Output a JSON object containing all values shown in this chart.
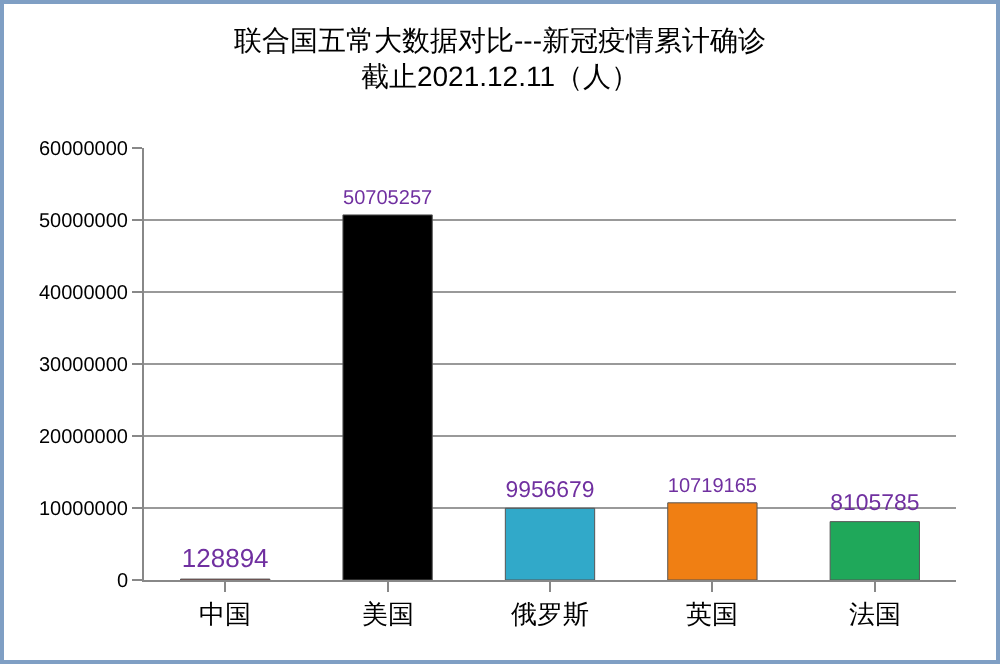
{
  "chart_data": {
    "type": "bar",
    "title": "联合国五常大数据对比---新冠疫情累计确诊",
    "subtitle": "截止2021.12.11（人）",
    "categories": [
      "中国",
      "美国",
      "俄罗斯",
      "英国",
      "法国"
    ],
    "values": [
      128894,
      50705257,
      9956679,
      10719165,
      8105785
    ],
    "colors": [
      "#c0504d",
      "#000000",
      "#31a9c9",
      "#f07f13",
      "#1fa85a"
    ],
    "ylim": [
      0,
      60000000
    ],
    "yticks": [
      0,
      10000000,
      20000000,
      30000000,
      40000000,
      50000000,
      60000000
    ],
    "grid": "y",
    "data_labels": true
  }
}
